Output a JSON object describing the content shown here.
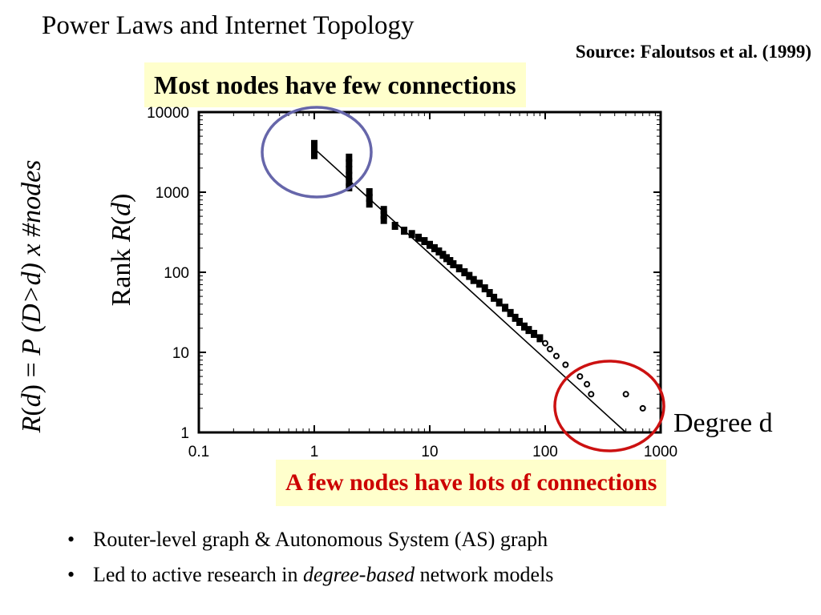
{
  "slide": {
    "title": "Power Laws and Internet Topology",
    "source": "Source: Faloutsos et al. (1999)",
    "top_callout": "Most nodes have few connections",
    "bottom_callout": "A few nodes have lots of connections",
    "bullets": [
      {
        "prefix": "Router-level graph & Autonomous System (AS) graph",
        "em": "",
        "suffix": ""
      },
      {
        "prefix": "Led to active research in ",
        "em": "degree-based",
        "suffix": " network models"
      }
    ],
    "bullet_marker": "•",
    "highlight_colors": {
      "top_circle": "#6666aa",
      "bottom_circle": "#cc1111",
      "callout_bg": "#ffffcc",
      "callout_red_text": "#cc0000"
    }
  },
  "chart_data": {
    "type": "scatter",
    "x_scale": "log",
    "y_scale": "log",
    "xlim": [
      0.1,
      1000
    ],
    "ylim": [
      1,
      10000
    ],
    "x_ticks": [
      "0.1",
      "1",
      "10",
      "100",
      "1000"
    ],
    "y_ticks": [
      "10000",
      "1000",
      "100",
      "10",
      "1"
    ],
    "xlabel": "Degree d",
    "ylabel_left": {
      "r": "R",
      "d": "d",
      "mid": " = ",
      "p": "P",
      "rest": " (D>d) x #nodes"
    },
    "ylabel_inner": {
      "word": "Rank ",
      "r": "R",
      "d": "d"
    },
    "series": [
      {
        "kind": "points",
        "values": [
          [
            1,
            4000
          ],
          [
            1,
            3600
          ],
          [
            1,
            3200
          ],
          [
            1,
            2900
          ],
          [
            2,
            2700
          ],
          [
            2,
            2300
          ],
          [
            2,
            1900
          ],
          [
            2,
            1600
          ],
          [
            2,
            1350
          ],
          [
            2,
            1150
          ],
          [
            3,
            1000
          ],
          [
            3,
            850
          ],
          [
            3,
            720
          ],
          [
            4,
            600
          ],
          [
            4,
            520
          ],
          [
            4,
            450
          ],
          [
            5,
            380
          ],
          [
            6,
            330
          ],
          [
            7,
            300
          ],
          [
            8,
            270
          ],
          [
            9,
            245
          ],
          [
            10,
            220
          ],
          [
            11,
            200
          ],
          [
            12,
            182
          ],
          [
            13,
            165
          ],
          [
            14,
            150
          ],
          [
            15,
            138
          ],
          [
            16,
            126
          ],
          [
            18,
            112
          ],
          [
            20,
            100
          ],
          [
            22,
            90
          ],
          [
            24,
            80
          ],
          [
            27,
            72
          ],
          [
            30,
            63
          ],
          [
            33,
            55
          ],
          [
            36,
            48
          ],
          [
            40,
            42
          ],
          [
            45,
            36
          ],
          [
            50,
            31
          ],
          [
            55,
            27
          ],
          [
            60,
            24
          ],
          [
            66,
            21
          ],
          [
            72,
            19
          ],
          [
            80,
            17
          ],
          [
            90,
            15
          ],
          [
            100,
            13
          ],
          [
            110,
            11
          ],
          [
            125,
            9
          ],
          [
            150,
            7
          ],
          [
            200,
            5
          ],
          [
            230,
            4
          ],
          [
            250,
            3
          ],
          [
            500,
            3
          ],
          [
            700,
            2
          ]
        ]
      },
      {
        "kind": "fit_line",
        "values": [
          [
            1,
            3500
          ],
          [
            500,
            1
          ]
        ]
      }
    ]
  }
}
